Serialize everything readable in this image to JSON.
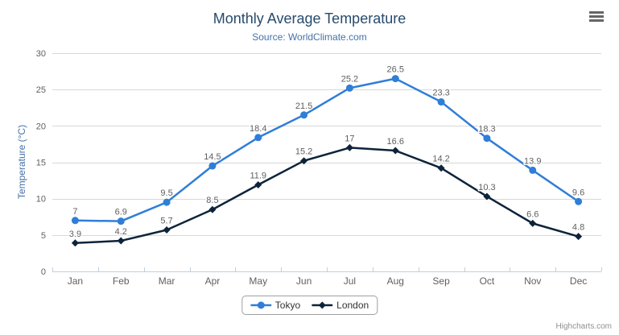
{
  "credits": {
    "label": "Highcharts.com"
  },
  "menu": {
    "icon": "hamburger-icon"
  },
  "colors": {
    "title_text": "#274b6d",
    "subtitle_text": "#4572A7",
    "axis_title_text": "#4572A7",
    "tick_label_text": "#606060",
    "data_label_text": "#606060",
    "grid": "#d8d8d8",
    "axis_line": "#c0d0e0",
    "legend_border": "#a0a0a0",
    "legend_text": "#333333",
    "credits_text": "#909090",
    "burger_icon": "#666666"
  },
  "chart_data": {
    "type": "line",
    "title": "Monthly Average Temperature",
    "subtitle": "Source: WorldClimate.com",
    "categories": [
      "Jan",
      "Feb",
      "Mar",
      "Apr",
      "May",
      "Jun",
      "Jul",
      "Aug",
      "Sep",
      "Oct",
      "Nov",
      "Dec"
    ],
    "series": [
      {
        "name": "Tokyo",
        "color": "#2f7ed8",
        "marker": "circle",
        "values": [
          7,
          6.9,
          9.5,
          14.5,
          18.4,
          21.5,
          25.2,
          26.5,
          23.3,
          18.3,
          13.9,
          9.6
        ]
      },
      {
        "name": "London",
        "color": "#0d233a",
        "marker": "diamond",
        "values": [
          3.9,
          4.2,
          5.7,
          8.5,
          11.9,
          15.2,
          17,
          16.6,
          14.2,
          10.3,
          6.6,
          4.8
        ]
      }
    ],
    "xlabel": "",
    "ylabel": "Temperature (°C)",
    "ylim": [
      0,
      30
    ],
    "ytick_interval": 5,
    "grid": true,
    "data_labels": true,
    "legend_position": "bottom"
  }
}
